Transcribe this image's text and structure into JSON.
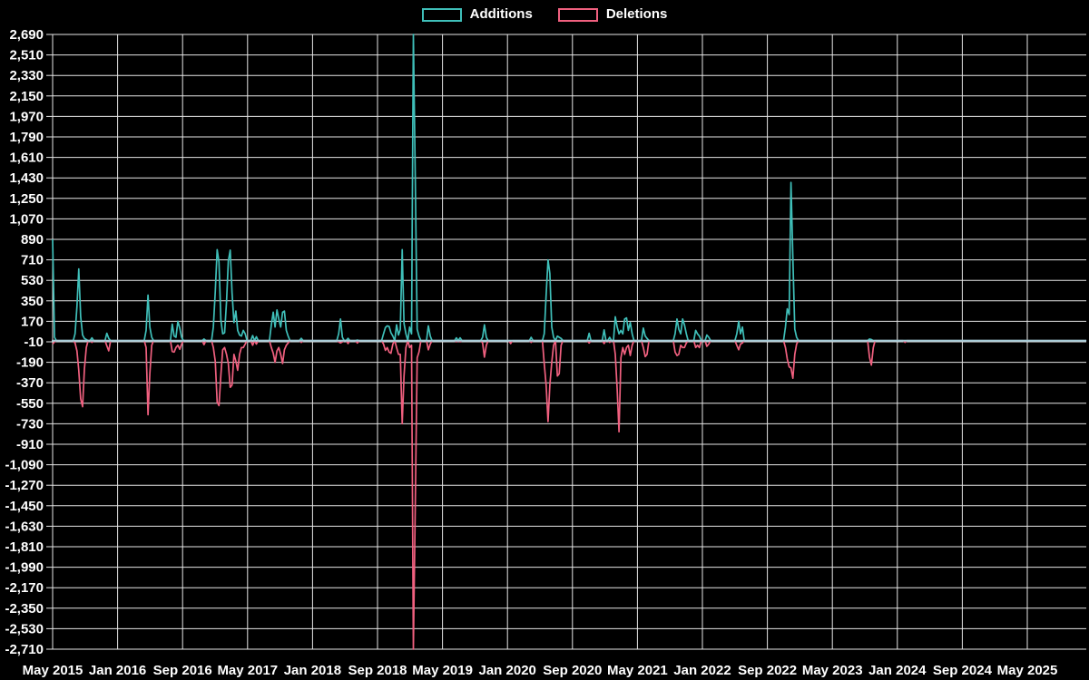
{
  "legend": {
    "additions_label": "Additions",
    "deletions_label": "Deletions"
  },
  "colors": {
    "background": "#000000",
    "additions": "#3fbfb9",
    "deletions": "#f0607f",
    "zero_line_blend": "#a6cbd7",
    "grid": "#e6e6e6",
    "text": "#ffffff"
  },
  "chart_data": {
    "type": "line",
    "title": "",
    "xlabel": "",
    "ylabel": "",
    "legend_position": "top-center",
    "grid": true,
    "series": [
      {
        "name": "Additions",
        "color": "#3fbfb9"
      },
      {
        "name": "Deletions",
        "color": "#f0607f"
      }
    ],
    "y_axis": {
      "min": -2710,
      "max": 2690,
      "step": 180,
      "tick_labels": [
        "2,690",
        "2,510",
        "2,330",
        "2,150",
        "1,970",
        "1,790",
        "1,610",
        "1,430",
        "1,250",
        "1,070",
        "890",
        "710",
        "530",
        "350",
        "170",
        "-10",
        "-190",
        "-370",
        "-550",
        "-730",
        "-910",
        "-1,090",
        "-1,270",
        "-1,450",
        "-1,630",
        "-1,810",
        "-1,990",
        "-2,170",
        "-2,350",
        "-2,530",
        "-2,710"
      ]
    },
    "x_axis": {
      "unit": "week",
      "months_per_tick": 8,
      "tick_labels": [
        "May 2015",
        "Jan 2016",
        "Sep 2016",
        "May 2017",
        "Jan 2018",
        "Sep 2018",
        "May 2019",
        "Jan 2020",
        "Sep 2020",
        "May 2021",
        "Jan 2022",
        "Sep 2022",
        "May 2023",
        "Jan 2024",
        "Sep 2024",
        "May 2025"
      ]
    },
    "weeks_total": 554,
    "baseline_value": 0,
    "spikes_note": "weekly points [week_index, additions, deletions_magnitude]; all unlisted weeks are ~0/0",
    "spikes": [
      [
        0,
        890,
        30
      ],
      [
        1,
        30,
        10
      ],
      [
        12,
        60,
        20
      ],
      [
        13,
        300,
        90
      ],
      [
        14,
        630,
        260
      ],
      [
        15,
        210,
        510
      ],
      [
        16,
        50,
        580
      ],
      [
        17,
        20,
        250
      ],
      [
        18,
        10,
        60
      ],
      [
        21,
        25,
        15
      ],
      [
        29,
        65,
        45
      ],
      [
        30,
        20,
        90
      ],
      [
        50,
        90,
        60
      ],
      [
        51,
        400,
        650
      ],
      [
        52,
        120,
        290
      ],
      [
        53,
        30,
        40
      ],
      [
        64,
        145,
        95
      ],
      [
        65,
        40,
        100
      ],
      [
        66,
        30,
        60
      ],
      [
        67,
        170,
        40
      ],
      [
        68,
        110,
        75
      ],
      [
        69,
        30,
        30
      ],
      [
        81,
        15,
        35
      ],
      [
        86,
        120,
        60
      ],
      [
        87,
        430,
        180
      ],
      [
        88,
        800,
        540
      ],
      [
        89,
        690,
        570
      ],
      [
        90,
        180,
        300
      ],
      [
        91,
        60,
        80
      ],
      [
        92,
        70,
        60
      ],
      [
        93,
        340,
        120
      ],
      [
        94,
        700,
        200
      ],
      [
        95,
        795,
        410
      ],
      [
        96,
        420,
        390
      ],
      [
        97,
        160,
        120
      ],
      [
        98,
        260,
        180
      ],
      [
        99,
        90,
        260
      ],
      [
        100,
        50,
        120
      ],
      [
        101,
        40,
        60
      ],
      [
        102,
        90,
        60
      ],
      [
        103,
        60,
        30
      ],
      [
        107,
        45,
        40
      ],
      [
        109,
        35,
        30
      ],
      [
        117,
        140,
        60
      ],
      [
        118,
        250,
        110
      ],
      [
        119,
        120,
        190
      ],
      [
        120,
        270,
        90
      ],
      [
        121,
        190,
        60
      ],
      [
        122,
        120,
        120
      ],
      [
        123,
        250,
        200
      ],
      [
        124,
        260,
        80
      ],
      [
        125,
        90,
        40
      ],
      [
        126,
        40,
        20
      ],
      [
        133,
        20,
        15
      ],
      [
        153,
        60,
        10
      ],
      [
        154,
        190,
        20
      ],
      [
        155,
        30,
        10
      ],
      [
        158,
        20,
        25
      ],
      [
        163,
        5,
        20
      ],
      [
        177,
        60,
        30
      ],
      [
        178,
        115,
        85
      ],
      [
        179,
        130,
        60
      ],
      [
        180,
        125,
        100
      ],
      [
        181,
        70,
        110
      ],
      [
        182,
        40,
        30
      ],
      [
        184,
        140,
        60
      ],
      [
        185,
        50,
        120
      ],
      [
        186,
        100,
        120
      ],
      [
        187,
        800,
        730
      ],
      [
        188,
        150,
        310
      ],
      [
        189,
        60,
        60
      ],
      [
        191,
        120,
        60
      ],
      [
        192,
        60,
        40
      ],
      [
        193,
        2690,
        2710
      ],
      [
        194,
        1430,
        1450
      ],
      [
        195,
        100,
        150
      ],
      [
        196,
        40,
        100
      ],
      [
        201,
        130,
        80
      ],
      [
        202,
        40,
        30
      ],
      [
        216,
        25,
        10
      ],
      [
        218,
        25,
        10
      ],
      [
        230,
        30,
        20
      ],
      [
        231,
        140,
        145
      ],
      [
        232,
        30,
        40
      ],
      [
        245,
        0,
        25
      ],
      [
        256,
        30,
        15
      ],
      [
        263,
        60,
        200
      ],
      [
        264,
        400,
        390
      ],
      [
        265,
        710,
        710
      ],
      [
        266,
        590,
        390
      ],
      [
        267,
        120,
        190
      ],
      [
        268,
        30,
        40
      ],
      [
        270,
        40,
        310
      ],
      [
        271,
        30,
        290
      ],
      [
        272,
        20,
        40
      ],
      [
        287,
        65,
        20
      ],
      [
        295,
        95,
        25
      ],
      [
        298,
        30,
        15
      ],
      [
        301,
        210,
        120
      ],
      [
        302,
        120,
        430
      ],
      [
        303,
        60,
        800
      ],
      [
        304,
        90,
        150
      ],
      [
        305,
        60,
        60
      ],
      [
        306,
        190,
        120
      ],
      [
        307,
        200,
        60
      ],
      [
        308,
        90,
        40
      ],
      [
        309,
        160,
        130
      ],
      [
        310,
        60,
        40
      ],
      [
        316,
        110,
        60
      ],
      [
        317,
        40,
        140
      ],
      [
        318,
        20,
        120
      ],
      [
        333,
        60,
        100
      ],
      [
        334,
        190,
        130
      ],
      [
        335,
        100,
        120
      ],
      [
        336,
        60,
        40
      ],
      [
        337,
        190,
        60
      ],
      [
        338,
        140,
        60
      ],
      [
        339,
        60,
        20
      ],
      [
        344,
        90,
        60
      ],
      [
        345,
        60,
        40
      ],
      [
        346,
        40,
        60
      ],
      [
        350,
        50,
        50
      ],
      [
        351,
        30,
        30
      ],
      [
        366,
        60,
        40
      ],
      [
        367,
        170,
        80
      ],
      [
        368,
        60,
        30
      ],
      [
        369,
        120,
        20
      ],
      [
        392,
        120,
        60
      ],
      [
        393,
        280,
        160
      ],
      [
        394,
        230,
        230
      ],
      [
        395,
        1390,
        240
      ],
      [
        396,
        720,
        330
      ],
      [
        397,
        100,
        120
      ],
      [
        398,
        30,
        30
      ],
      [
        437,
        15,
        145
      ],
      [
        438,
        10,
        215
      ],
      [
        439,
        0,
        60
      ],
      [
        456,
        0,
        15
      ]
    ]
  }
}
